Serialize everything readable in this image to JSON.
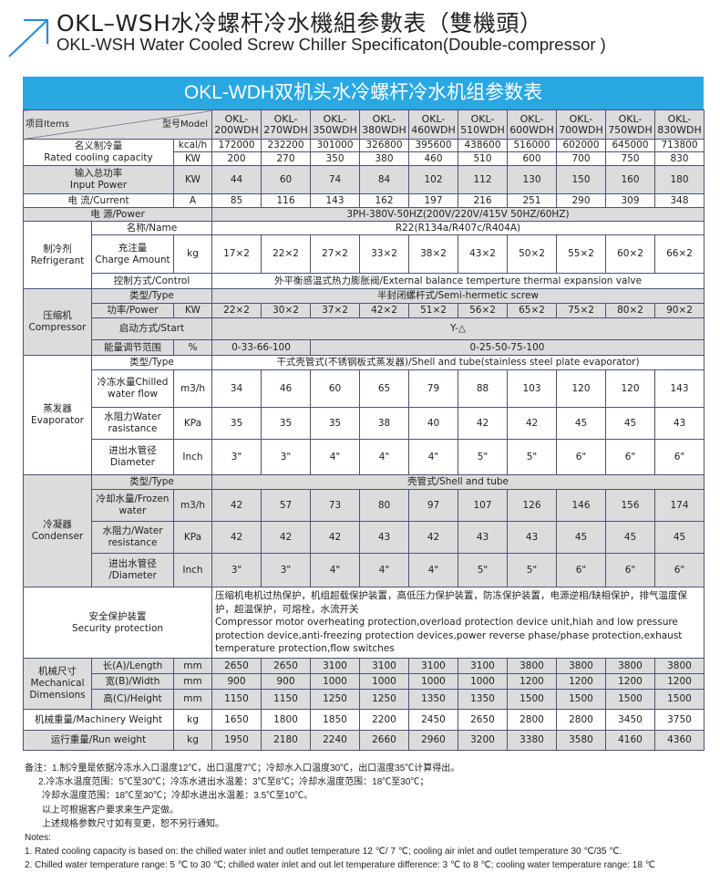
{
  "header": {
    "title_cn": "OKL–WSH水冷螺杆冷水機組参數表（雙機頭）",
    "title_en": "OKL-WSH Water Cooled Screw Chiller Specificaton(Double-compressor )",
    "icon": "arrow-up-right-icon",
    "accent_color": "#29a8e2"
  },
  "table": {
    "banner": "OKL-WDH双机头水冷螺杆冷水机组参数表",
    "items_label": "项目Items",
    "model_label": "型号Model",
    "model_prefix": "OKL-",
    "models": [
      "200WDH",
      "270WDH",
      "350WDH",
      "380WDH",
      "460WDH",
      "510WDH",
      "600WDH",
      "700WDH",
      "750WDH",
      "830WDH"
    ],
    "rated_cooling": {
      "label_cn": "名义制冷量",
      "label_en": "Rated cooling capacity",
      "unit_kcal": "kcal/h",
      "kcal": [
        "172000",
        "232200",
        "301000",
        "326800",
        "395600",
        "438600",
        "516000",
        "602000",
        "645000",
        "713800"
      ],
      "unit_kw": "KW",
      "kw": [
        "200",
        "270",
        "350",
        "380",
        "460",
        "510",
        "600",
        "700",
        "750",
        "830"
      ]
    },
    "input_power": {
      "label_cn": "输入总功率",
      "label_en": "Input Power",
      "unit": "KW",
      "values": [
        "44",
        "60",
        "74",
        "84",
        "102",
        "112",
        "130",
        "150",
        "160",
        "180"
      ]
    },
    "current": {
      "label": "电  流/Current",
      "unit": "A",
      "values": [
        "85",
        "116",
        "143",
        "162",
        "197",
        "216",
        "251",
        "290",
        "309",
        "348"
      ]
    },
    "power": {
      "label": "电    源/Power",
      "value": "3PH-380V-50HZ(200V/220V/415V  50HZ/60HZ)"
    },
    "refrigerant": {
      "group_cn": "制冷剂",
      "group_en": "Refrigerant",
      "name_label": "名称/Name",
      "name_value": "R22(R134a/R407c/R404A)",
      "charge_cn": "充注量",
      "charge_en": "Charge Amount",
      "charge_unit": "kg",
      "charge": [
        "17×2",
        "22×2",
        "27×2",
        "33×2",
        "38×2",
        "43×2",
        "50×2",
        "55×2",
        "60×2",
        "66×2"
      ],
      "control_label": "控制方式/Control",
      "control_value": "外平衡感温式热力膨胀阀/External balance temperture thermal expansion valve"
    },
    "compressor": {
      "group_cn": "压缩机",
      "group_en": "Compressor",
      "type_label": "类型/Type",
      "type_value": "半封闭螺杆式/Semi-hermetic screw",
      "power_label": "功率/Power",
      "power_unit": "KW",
      "power": [
        "22×2",
        "30×2",
        "37×2",
        "42×2",
        "51×2",
        "56×2",
        "65×2",
        "75×2",
        "80×2",
        "90×2"
      ],
      "start_label": "启动方式/Start",
      "start_value": "Y-△",
      "energy_label": "能量调节范围",
      "energy_unit": "%",
      "energy_a": "0-33-66-100",
      "energy_b": "0-25-50-75-100"
    },
    "evaporator": {
      "group_cn": "蒸发器",
      "group_en": "Evaporator",
      "type_label": "类型/Type",
      "type_value": "干式壳管式(不锈钢板式蒸发器)/Shell and tube(stainless steel plate evaporator)",
      "flow_label": "冷冻水量Chilled water flow",
      "flow_unit": "m3/h",
      "flow": [
        "34",
        "46",
        "60",
        "65",
        "79",
        "88",
        "103",
        "120",
        "120",
        "143"
      ],
      "res_label": "水阻力Water rasistance",
      "res_unit": "KPa",
      "res": [
        "35",
        "35",
        "35",
        "38",
        "40",
        "42",
        "42",
        "45",
        "45",
        "43"
      ],
      "dia_label_cn": "进出水管径",
      "dia_label_en": "Diameter",
      "dia_unit": "Inch",
      "dia": [
        "3\"",
        "3\"",
        "4\"",
        "4\"",
        "4\"",
        "5\"",
        "5\"",
        "6\"",
        "6\"",
        "6\""
      ]
    },
    "condenser": {
      "group_cn": "冷凝器",
      "group_en": "Condenser",
      "type_label": "类型/Type",
      "type_value": "壳管式/Shell and tube",
      "flow_label": "冷却水量/Frozen water",
      "flow_unit": "m3/h",
      "flow": [
        "42",
        "57",
        "73",
        "80",
        "97",
        "107",
        "126",
        "146",
        "156",
        "174"
      ],
      "res_label": "水阻力/Water resistance",
      "res_unit": "KPa",
      "res": [
        "42",
        "42",
        "42",
        "43",
        "42",
        "43",
        "43",
        "45",
        "45",
        "45"
      ],
      "dia_label_cn": "进出水管径",
      "dia_label_en": "/Diameter",
      "dia_unit": "Inch",
      "dia": [
        "3\"",
        "3\"",
        "4\"",
        "4\"",
        "4\"",
        "5\"",
        "5\"",
        "6\"",
        "6\"",
        "6\""
      ]
    },
    "security": {
      "label_cn": "安全保护装置",
      "label_en": "Security protection",
      "value_cn": "压缩机电机过热保护，机组超载保护装置，高低压力保护装置，防冻保护装置，电源逆相/缺相保护，排气温度保护，超温保护，可熔栓，水流开关",
      "value_en": "Compressor motor overheating protection,overload protection device unit,hiah and low pressure protection device,anti-freezing protection devices,power reverse phase/phase protection,exhaust temperature protection,flow switches"
    },
    "dimensions": {
      "group_cn": "机械尺寸",
      "group_en1": "Mechanical",
      "group_en2": "Dimensions",
      "length_label": "长(A)/Length",
      "length_unit": "mm",
      "length": [
        "2650",
        "2650",
        "3100",
        "3100",
        "3100",
        "3100",
        "3800",
        "3800",
        "3800",
        "3800"
      ],
      "width_label": "宽(B)/Width",
      "width_unit": "mm",
      "width": [
        "900",
        "900",
        "1000",
        "1000",
        "1000",
        "1000",
        "1200",
        "1200",
        "1200",
        "1200"
      ],
      "height_label": "高(C)/Height",
      "height_unit": "mm",
      "height": [
        "1150",
        "1150",
        "1250",
        "1250",
        "1350",
        "1350",
        "1500",
        "1500",
        "1500",
        "1500"
      ]
    },
    "machinery_weight": {
      "label": "机械重量/Machinery Weight",
      "unit": "kg",
      "values": [
        "1650",
        "1800",
        "1850",
        "2200",
        "2450",
        "2650",
        "2800",
        "2800",
        "3450",
        "3750"
      ]
    },
    "run_weight": {
      "label": "运行重量/Run weight",
      "unit": "kg",
      "values": [
        "1950",
        "2180",
        "2240",
        "2660",
        "2960",
        "3200",
        "3380",
        "3580",
        "4160",
        "4360"
      ]
    }
  },
  "notes": {
    "cn": [
      "备注：1.制冷量是依据冷冻水入口温度12℃，出口温度7℃；冷却水入口温度30℃，出口温度35℃计算得出。",
      "2.冷冻水温度范围：5℃至30℃；冷冻水进出水温差：3℃至8℃；冷却水温度范围：18℃至30℃；",
      "冷却水温度范围：18℃至30℃；冷却水进出水温差：3.5℃至10℃。",
      "以上可根据客户要求来生产定做。",
      "上述规格参数尺寸如有变更，恕不另行通知。"
    ],
    "en_title": "Notes:",
    "en": [
      "1. Rated cooling capacity is based on: the chilled water inlet and outlet temperature 12 ℃/ 7 ℃; cooling air inlet and outlet temperature 30 ℃/35 ℃.",
      "2. Chilled water temperature range: 5 ℃ to 30 ℃; chilled water inlet and out let temperature difference: 3 ℃ to 8 ℃; cooling water temperature range: 18 ℃"
    ]
  }
}
